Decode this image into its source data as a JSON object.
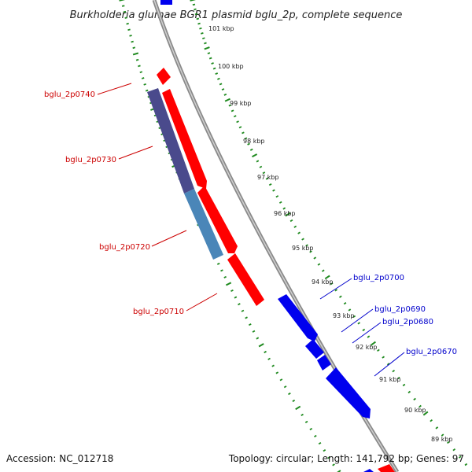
{
  "header": {
    "title": "Burkholderia glumae BGR1 plasmid bglu_2p, complete sequence"
  },
  "footer": {
    "accession": "Accession: NC_012718",
    "summary": "Topology: circular; Length: 141,792 bp; Genes: 97"
  },
  "colors": {
    "backbone": "#8a8a8a",
    "tick": "#1f8a1f",
    "gene_forward": "#ff0000",
    "gene_reverse": "#0000ee",
    "cds_dark": "#4a4a8c",
    "cds_light": "#4a86b8",
    "label_forward": "#cc0000",
    "label_reverse": "#0000cc"
  },
  "scale_labels": [
    "101 kbp",
    "100 kbp",
    "99 kbp",
    "98 kbp",
    "97 kbp",
    "96 kbp",
    "95 kbp",
    "94 kbp",
    "93 kbp",
    "92 kbp",
    "91 kbp",
    "90 kbp",
    "89 kbp"
  ],
  "gene_labels": {
    "forward": [
      "bglu_2p0740",
      "bglu_2p0730",
      "bglu_2p0720",
      "bglu_2p0710"
    ],
    "reverse": [
      "bglu_2p0700",
      "bglu_2p0690",
      "bglu_2p0680",
      "bglu_2p0670"
    ]
  }
}
